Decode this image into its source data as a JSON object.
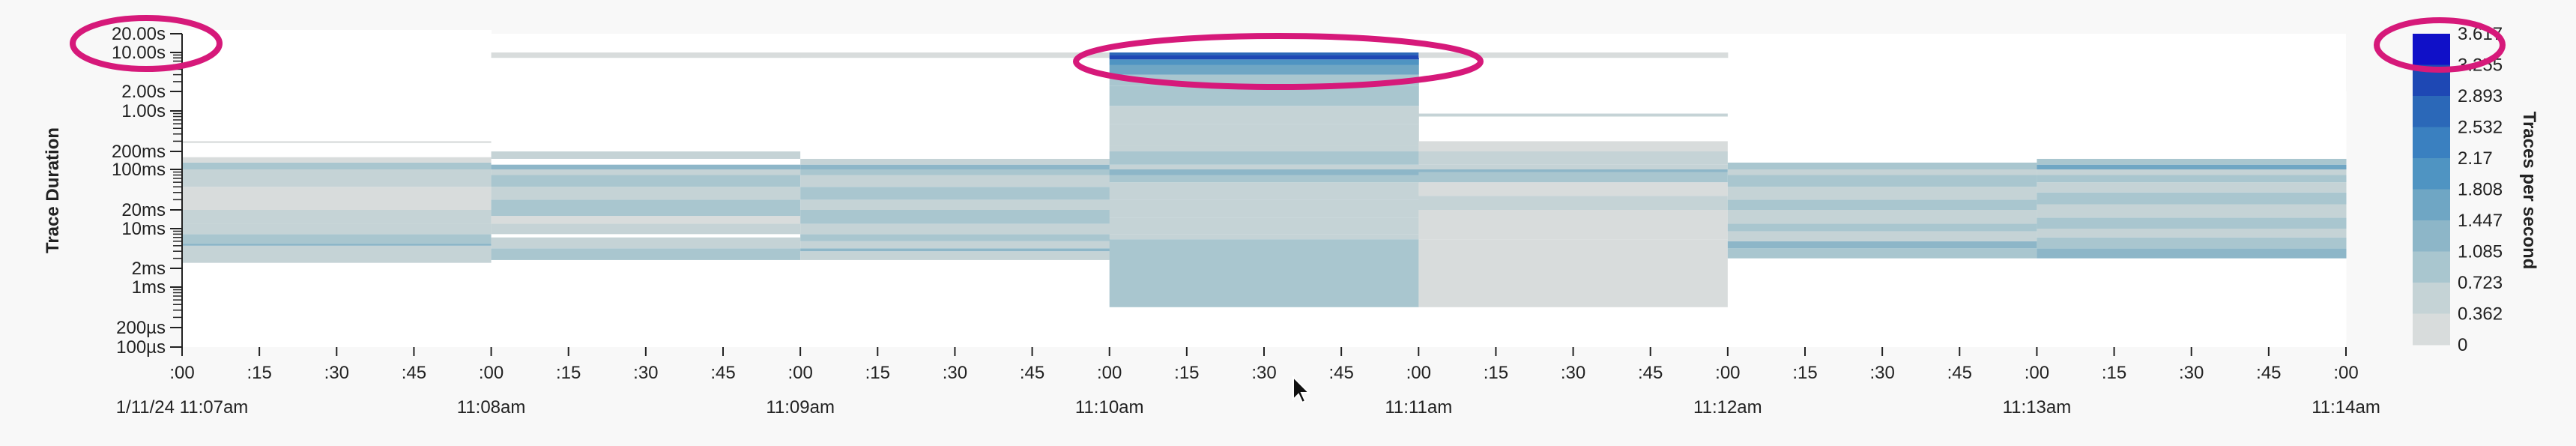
{
  "chart_data": {
    "type": "heatmap",
    "ylabel": "Trace Duration",
    "legend_title": "Traces per second",
    "y_scale": "log",
    "y_tick_labels": [
      "20.00s",
      "10.00s",
      "2.00s",
      "1.00s",
      "200ms",
      "100ms",
      "20ms",
      "10ms",
      "2ms",
      "1ms",
      "200µs",
      "100µs"
    ],
    "x_tick_labels": [
      ":00",
      ":15",
      ":30",
      ":45",
      ":00",
      ":15",
      ":30",
      ":45",
      ":00",
      ":15",
      ":30",
      ":45",
      ":00",
      ":15",
      ":30",
      ":45",
      ":00",
      ":15",
      ":30",
      ":45",
      ":00",
      ":15",
      ":30",
      ":45",
      ":00",
      ":15",
      ":30",
      ":45",
      ":00"
    ],
    "x_date_labels": [
      "1/11/24 11:07am",
      "11:08am",
      "11:09am",
      "11:10am",
      "11:11am",
      "11:12am",
      "11:13am",
      "11:14am"
    ],
    "legend_ticks": [
      "3.617",
      "3.255",
      "2.893",
      "2.532",
      "2.17",
      "1.808",
      "1.447",
      "1.085",
      "0.723",
      "0.362",
      "0"
    ],
    "color_scale": [
      "#ffffff",
      "#d8dcdc",
      "#c5d3d6",
      "#a9c6cf",
      "#8db6c8",
      "#6fa6c4",
      "#4f94c2",
      "#3a80c0",
      "#2b68b8",
      "#1e48b4",
      "#1010c8"
    ],
    "columns": [
      {
        "time": "11:07:00",
        "bands": [
          [
            0.00011,
            2.0,
            0.01
          ],
          [
            2.0,
            8.0,
            0.03
          ],
          [
            8.0,
            30.0,
            0.01
          ],
          [
            0.0025,
            0.005,
            0.2
          ],
          [
            0.005,
            0.0055,
            0.42
          ],
          [
            0.0055,
            0.008,
            0.3
          ],
          [
            0.008,
            0.012,
            0.16
          ],
          [
            0.012,
            0.02,
            0.24
          ],
          [
            0.02,
            0.05,
            0.12
          ],
          [
            0.05,
            0.08,
            0.2
          ],
          [
            0.08,
            0.1,
            0.24
          ],
          [
            0.1,
            0.13,
            0.32
          ],
          [
            0.13,
            0.16,
            0.14
          ],
          [
            0.28,
            0.3,
            0.12
          ]
        ]
      },
      {
        "time": "11:08:00",
        "bands": [
          [
            0.00011,
            2.0,
            0.01
          ],
          [
            8.0,
            10.0,
            0.06
          ],
          [
            0.0028,
            0.0045,
            0.34
          ],
          [
            0.0045,
            0.007,
            0.2
          ],
          [
            0.008,
            0.012,
            0.24
          ],
          [
            0.012,
            0.016,
            0.12
          ],
          [
            0.016,
            0.03,
            0.28
          ],
          [
            0.03,
            0.05,
            0.16
          ],
          [
            0.05,
            0.08,
            0.3
          ],
          [
            0.08,
            0.1,
            0.2
          ],
          [
            0.1,
            0.12,
            0.36
          ],
          [
            0.15,
            0.2,
            0.24
          ]
        ]
      },
      {
        "time": "11:09:00",
        "bands": [
          [
            0.00011,
            2.0,
            0.01
          ],
          [
            8.0,
            10.0,
            0.06
          ],
          [
            0.0028,
            0.004,
            0.22
          ],
          [
            0.004,
            0.0045,
            0.4
          ],
          [
            0.0045,
            0.006,
            0.24
          ],
          [
            0.006,
            0.008,
            0.32
          ],
          [
            0.008,
            0.012,
            0.2
          ],
          [
            0.012,
            0.02,
            0.3
          ],
          [
            0.02,
            0.03,
            0.18
          ],
          [
            0.03,
            0.05,
            0.26
          ],
          [
            0.05,
            0.08,
            0.16
          ],
          [
            0.08,
            0.1,
            0.3
          ],
          [
            0.1,
            0.12,
            0.38
          ],
          [
            0.12,
            0.15,
            0.2
          ]
        ]
      },
      {
        "time": "11:10:00",
        "bands": [
          [
            0.00045,
            0.0065,
            0.3
          ],
          [
            0.0065,
            0.008,
            0.22
          ],
          [
            0.008,
            0.015,
            0.2
          ],
          [
            0.015,
            0.03,
            0.24
          ],
          [
            0.03,
            0.06,
            0.2
          ],
          [
            0.06,
            0.08,
            0.28
          ],
          [
            0.08,
            0.1,
            0.36
          ],
          [
            0.1,
            0.12,
            0.24
          ],
          [
            0.12,
            0.2,
            0.28
          ],
          [
            0.2,
            0.25,
            0.2
          ],
          [
            0.25,
            0.6,
            0.2
          ],
          [
            0.6,
            1.2,
            0.22
          ],
          [
            1.2,
            2.5,
            0.26
          ],
          [
            2.5,
            4.0,
            0.34
          ],
          [
            4.0,
            6.0,
            0.5
          ],
          [
            6.0,
            7.5,
            0.64
          ],
          [
            7.5,
            9.0,
            0.9
          ],
          [
            9.0,
            10.0,
            0.76
          ]
        ]
      },
      {
        "time": "11:11:00",
        "bands": [
          [
            0.00045,
            0.0065,
            0.1
          ],
          [
            0.0065,
            0.02,
            0.12
          ],
          [
            0.02,
            0.035,
            0.24
          ],
          [
            0.035,
            0.06,
            0.14
          ],
          [
            0.06,
            0.09,
            0.3
          ],
          [
            0.09,
            0.1,
            0.42
          ],
          [
            0.1,
            0.12,
            0.24
          ],
          [
            0.12,
            0.2,
            0.2
          ],
          [
            0.2,
            0.3,
            0.14
          ],
          [
            0.8,
            0.9,
            0.16
          ],
          [
            8.0,
            10.0,
            0.06
          ]
        ]
      },
      {
        "time": "11:12:00",
        "bands": [
          [
            0.00011,
            2.0,
            0.01
          ],
          [
            0.003,
            0.0045,
            0.28
          ],
          [
            0.0045,
            0.006,
            0.36
          ],
          [
            0.006,
            0.009,
            0.22
          ],
          [
            0.009,
            0.012,
            0.3
          ],
          [
            0.012,
            0.02,
            0.18
          ],
          [
            0.02,
            0.03,
            0.3
          ],
          [
            0.03,
            0.05,
            0.2
          ],
          [
            0.05,
            0.08,
            0.32
          ],
          [
            0.08,
            0.1,
            0.2
          ],
          [
            0.1,
            0.13,
            0.34
          ]
        ]
      },
      {
        "time": "11:13:00",
        "bands": [
          [
            0.00011,
            2.0,
            0.01
          ],
          [
            0.003,
            0.0045,
            0.38
          ],
          [
            0.0045,
            0.007,
            0.26
          ],
          [
            0.007,
            0.01,
            0.18
          ],
          [
            0.01,
            0.015,
            0.3
          ],
          [
            0.015,
            0.025,
            0.16
          ],
          [
            0.025,
            0.04,
            0.28
          ],
          [
            0.04,
            0.06,
            0.2
          ],
          [
            0.06,
            0.08,
            0.34
          ],
          [
            0.08,
            0.1,
            0.24
          ],
          [
            0.1,
            0.12,
            0.48
          ],
          [
            0.12,
            0.15,
            0.26
          ]
        ]
      }
    ]
  },
  "annotations": [
    {
      "name": "y-axis-top-callout",
      "color": "#d6197a"
    },
    {
      "name": "spike-callout",
      "color": "#d6197a"
    },
    {
      "name": "legend-max-callout",
      "color": "#d6197a"
    }
  ]
}
